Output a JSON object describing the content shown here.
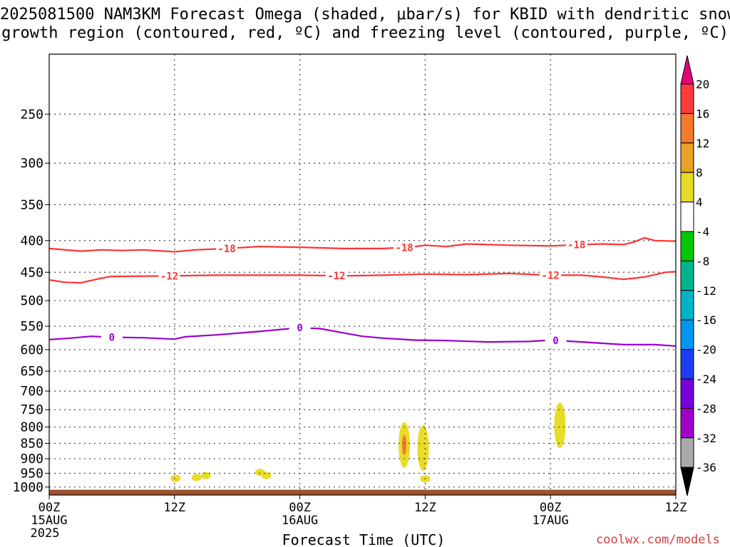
{
  "title_line1": "2025081500 NAM3KM Forecast Omega (shaded, μbar/s) for KBID with dendritic snow",
  "title_line2": "growth region (contoured, red, ºC) and freezing level (contoured, purple, ºC)",
  "credit": "coolwx.com/models",
  "chart_data": {
    "type": "contour",
    "title": "2025081500 NAM3KM Forecast Omega (shaded, μbar/s) for KBID with dendritic snow growth region (contoured, red, ºC) and freezing level (contoured, purple, ºC)",
    "xlabel": "Forecast Time (UTC)",
    "x_ticks": [
      {
        "hour": 0,
        "label": "00Z",
        "sub": "15AUG",
        "sub2": "2025"
      },
      {
        "hour": 12,
        "label": "12Z",
        "sub": "",
        "sub2": ""
      },
      {
        "hour": 24,
        "label": "00Z",
        "sub": "16AUG",
        "sub2": ""
      },
      {
        "hour": 36,
        "label": "12Z",
        "sub": "",
        "sub2": ""
      },
      {
        "hour": 48,
        "label": "00Z",
        "sub": "17AUG",
        "sub2": ""
      },
      {
        "hour": 60,
        "label": "12Z",
        "sub": "",
        "sub2": ""
      }
    ],
    "xlim_hours": [
      0,
      60
    ],
    "ylabel": "",
    "y_axis": "pressure (log, inverted)",
    "ylim_hpa": [
      1030,
      200
    ],
    "y_ticks": [
      250,
      300,
      350,
      400,
      450,
      500,
      550,
      600,
      650,
      700,
      750,
      800,
      850,
      900,
      950,
      1000
    ],
    "grid": true,
    "contours": [
      {
        "name": "-18",
        "color": "#ff3333",
        "labels_at_hours": [
          17,
          34,
          50.5
        ],
        "points": [
          [
            0,
            412
          ],
          [
            3,
            416
          ],
          [
            5,
            414
          ],
          [
            7,
            415
          ],
          [
            9,
            414
          ],
          [
            12,
            417
          ],
          [
            14,
            414
          ],
          [
            17,
            412
          ],
          [
            20,
            409
          ],
          [
            24,
            410
          ],
          [
            28,
            412
          ],
          [
            32,
            412
          ],
          [
            34.5,
            410
          ],
          [
            36,
            407
          ],
          [
            38,
            409
          ],
          [
            40,
            405
          ],
          [
            44,
            407
          ],
          [
            48,
            408
          ],
          [
            51,
            406
          ],
          [
            53,
            405
          ],
          [
            55,
            406
          ],
          [
            56,
            402
          ],
          [
            57,
            396
          ],
          [
            58,
            400
          ],
          [
            60,
            401
          ]
        ]
      },
      {
        "name": "-12",
        "color": "#ff3333",
        "labels_at_hours": [
          11.5,
          27.5,
          48
        ],
        "points": [
          [
            0,
            463
          ],
          [
            1.5,
            467
          ],
          [
            3,
            468
          ],
          [
            5,
            460
          ],
          [
            6,
            457
          ],
          [
            12,
            456
          ],
          [
            16,
            455
          ],
          [
            20,
            455
          ],
          [
            24,
            455
          ],
          [
            28,
            456
          ],
          [
            32,
            455
          ],
          [
            36,
            453
          ],
          [
            40,
            454
          ],
          [
            44,
            452
          ],
          [
            48,
            455
          ],
          [
            51,
            455
          ],
          [
            53,
            458
          ],
          [
            55,
            462
          ],
          [
            57,
            458
          ],
          [
            59,
            450
          ],
          [
            60,
            449
          ]
        ]
      },
      {
        "name": "0",
        "color": "#9900cc",
        "labels_at_hours": [
          6,
          24,
          48.5
        ],
        "points": [
          [
            0,
            578
          ],
          [
            2,
            575
          ],
          [
            4,
            571
          ],
          [
            6,
            573
          ],
          [
            9,
            574
          ],
          [
            12,
            577
          ],
          [
            13,
            572
          ],
          [
            16,
            568
          ],
          [
            20,
            561
          ],
          [
            23,
            555
          ],
          [
            24,
            553
          ],
          [
            26,
            555
          ],
          [
            28,
            563
          ],
          [
            30,
            571
          ],
          [
            32,
            575
          ],
          [
            35,
            579
          ],
          [
            38,
            580
          ],
          [
            42,
            583
          ],
          [
            46,
            582
          ],
          [
            48,
            579
          ],
          [
            51,
            583
          ],
          [
            55,
            589
          ],
          [
            58,
            589
          ],
          [
            60,
            592
          ]
        ]
      }
    ],
    "omega_shading": [
      {
        "hour": 12.1,
        "hpa": 968,
        "value": 4
      },
      {
        "hour": 14.1,
        "hpa": 965,
        "value": 4
      },
      {
        "hour": 15.0,
        "hpa": 958,
        "value": 6
      },
      {
        "hour": 20.2,
        "hpa": 947,
        "value": 4
      },
      {
        "hour": 20.8,
        "hpa": 958,
        "value": 4
      },
      {
        "hour": 34.0,
        "hpa": 855,
        "value": 6
      },
      {
        "hour": 34.0,
        "hpa": 855,
        "value": 12
      },
      {
        "hour": 35.8,
        "hpa": 865,
        "value": 4
      },
      {
        "hour": 36.0,
        "hpa": 970,
        "value": 4
      },
      {
        "hour": 48.9,
        "hpa": 795,
        "value": 4
      }
    ],
    "colorbar": {
      "unit": "μbar/s",
      "labels": [
        "20",
        "16",
        "12",
        "8",
        "4",
        "-4",
        "-8",
        "-12",
        "-16",
        "-20",
        "-24",
        "-28",
        "-32",
        "-36"
      ],
      "colors": [
        "#e8007a",
        "#ff3c3c",
        "#f5792a",
        "#e8a028",
        "#e8dc28",
        "#ffffff",
        "#00c800",
        "#00b48c",
        "#00b4c8",
        "#0096f0",
        "#1e3cf0",
        "#7800dc",
        "#a000c8",
        "#aaaaaa",
        "#000000"
      ]
    },
    "terrain_color": "#a0522d"
  }
}
